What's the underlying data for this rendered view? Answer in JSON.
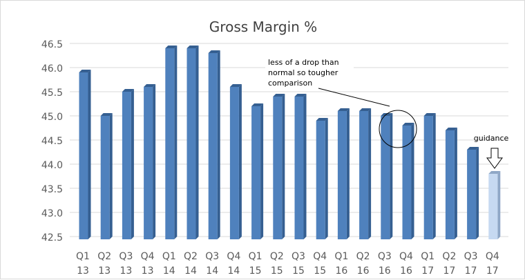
{
  "chart_data": {
    "type": "bar",
    "title": "Gross Margin %",
    "xlabel": "",
    "ylabel": "",
    "categories": [
      [
        "Q1",
        "13"
      ],
      [
        "Q2",
        "13"
      ],
      [
        "Q3",
        "13"
      ],
      [
        "Q4",
        "13"
      ],
      [
        "Q1",
        "14"
      ],
      [
        "Q2",
        "14"
      ],
      [
        "Q3",
        "14"
      ],
      [
        "Q4",
        "14"
      ],
      [
        "Q1",
        "15"
      ],
      [
        "Q2",
        "15"
      ],
      [
        "Q3",
        "15"
      ],
      [
        "Q4",
        "15"
      ],
      [
        "Q1",
        "16"
      ],
      [
        "Q2",
        "16"
      ],
      [
        "Q3",
        "16"
      ],
      [
        "Q4",
        "16"
      ],
      [
        "Q1",
        "17"
      ],
      [
        "Q2",
        "17"
      ],
      [
        "Q3",
        "17"
      ],
      [
        "Q4",
        "17"
      ]
    ],
    "values": [
      45.9,
      45.0,
      45.5,
      45.6,
      46.4,
      46.4,
      46.3,
      45.6,
      45.2,
      45.4,
      45.4,
      44.9,
      45.1,
      45.1,
      45.0,
      44.8,
      45.0,
      44.7,
      44.3,
      43.8
    ],
    "ylim": [
      42.5,
      46.5
    ],
    "yticks": [
      "42.5",
      "43.0",
      "43.5",
      "44.0",
      "44.5",
      "45.0",
      "45.5",
      "46.0",
      "46.5"
    ],
    "grid": true,
    "style": "3d-column",
    "colors": {
      "bar": "#4f81bd",
      "bar_side": "#355f91",
      "highlight_bar": "#c6d9f1",
      "highlight_side": "#8fa7c6",
      "grid": "#d9d9d9",
      "text": "#595959"
    },
    "highlight_index": 19,
    "annotations": {
      "note_lines": [
        "less of a drop than",
        "normal so tougher",
        "comparison"
      ],
      "note_target": "Q4 16",
      "guidance_label": "guidance",
      "guidance_target": "Q4 17"
    }
  }
}
